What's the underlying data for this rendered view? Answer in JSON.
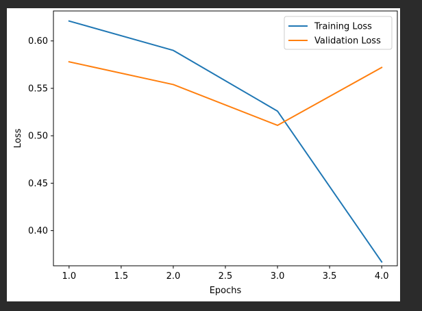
{
  "chart_data": {
    "type": "line",
    "xlabel": "Epochs",
    "ylabel": "Loss",
    "x": [
      1.0,
      2.0,
      3.0,
      4.0
    ],
    "xlim": [
      0.85,
      4.15
    ],
    "ylim": [
      0.3629,
      0.6316
    ],
    "xticks": [
      1.0,
      1.5,
      2.0,
      2.5,
      3.0,
      3.5,
      4.0
    ],
    "xtick_labels": [
      "1.0",
      "1.5",
      "2.0",
      "2.5",
      "3.0",
      "3.5",
      "4.0"
    ],
    "yticks": [
      0.4,
      0.45,
      0.5,
      0.55,
      0.6
    ],
    "ytick_labels": [
      "0.40",
      "0.45",
      "0.50",
      "0.55",
      "0.60"
    ],
    "grid": false,
    "legend_position": "top-right",
    "series": [
      {
        "name": "Training Loss",
        "color": "#1f77b4",
        "values": [
          0.621,
          0.59,
          0.526,
          0.367
        ]
      },
      {
        "name": "Validation Loss",
        "color": "#ff7f0e",
        "values": [
          0.578,
          0.554,
          0.511,
          0.572
        ]
      }
    ]
  }
}
